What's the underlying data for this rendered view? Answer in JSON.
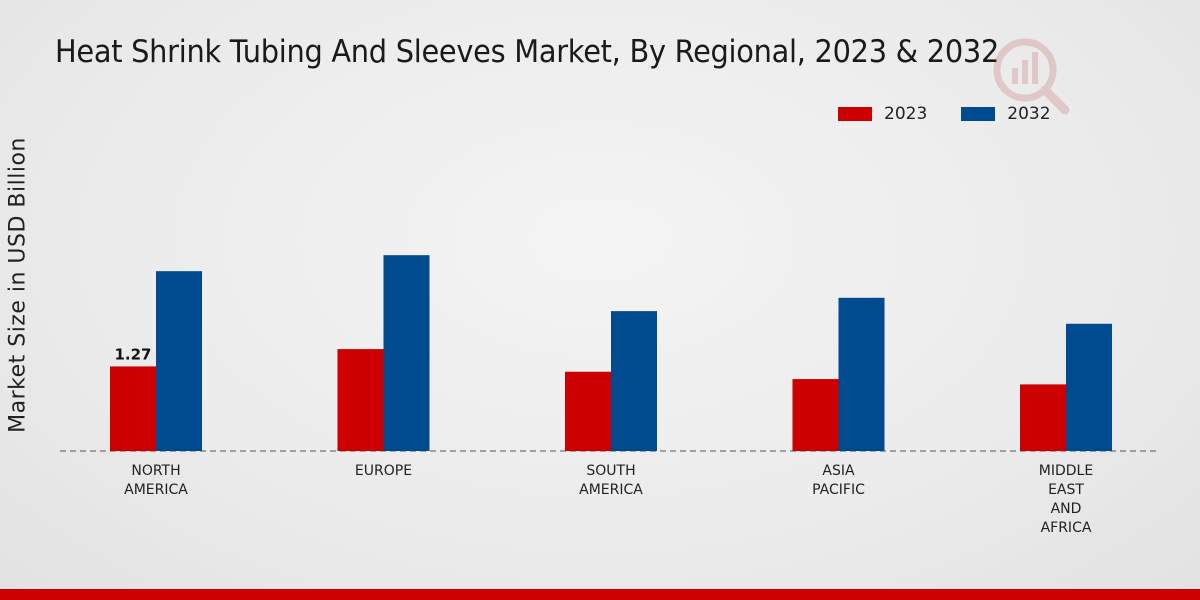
{
  "chart_data": {
    "type": "bar",
    "title": "Heat Shrink Tubing And Sleeves Market, By Regional, 2023 & 2032",
    "ylabel": "Market Size in USD Billion",
    "xlabel": "",
    "categories": [
      [
        "NORTH",
        "AMERICA"
      ],
      [
        "EUROPE"
      ],
      [
        "SOUTH",
        "AMERICA"
      ],
      [
        "ASIA",
        "PACIFIC"
      ],
      [
        "MIDDLE",
        "EAST",
        "AND",
        "AFRICA"
      ]
    ],
    "series": [
      {
        "name": "2023",
        "color": "#cc0000",
        "values": [
          1.27,
          1.53,
          1.19,
          1.08,
          1.0
        ]
      },
      {
        "name": "2032",
        "color": "#004a8f",
        "values": [
          2.7,
          2.94,
          2.1,
          2.3,
          1.91
        ]
      }
    ],
    "data_labels": [
      {
        "series": 0,
        "category": 0,
        "text": "1.27"
      }
    ],
    "ylim": [
      0,
      5.3
    ],
    "grid": false,
    "legend_position": "top-right"
  },
  "colors": {
    "accent": "#cc0000",
    "secondary": "#004a8f"
  }
}
